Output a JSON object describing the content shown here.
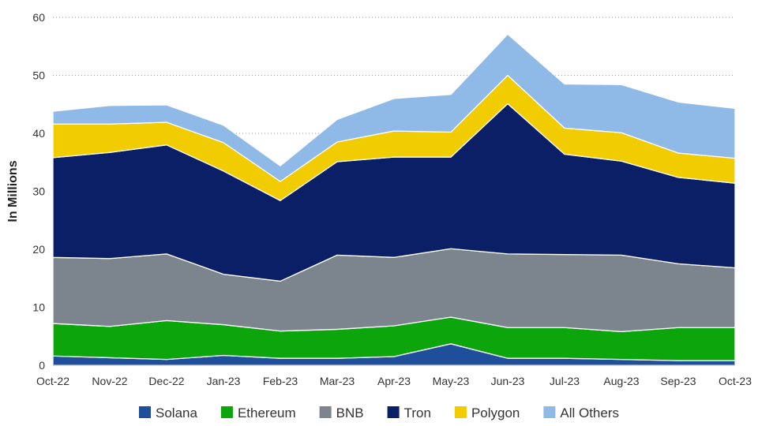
{
  "chart_data": {
    "type": "area",
    "stacked": true,
    "title": "",
    "xlabel": "",
    "ylabel": "In Millions",
    "ylim": [
      0,
      60
    ],
    "yticks": [
      "0",
      "10",
      "20",
      "30",
      "40",
      "50",
      "60"
    ],
    "grid": "horizontal dotted",
    "legend_position": "bottom",
    "categories": [
      "Oct-22",
      "Nov-22",
      "Dec-22",
      "Jan-23",
      "Feb-23",
      "Mar-23",
      "Apr-23",
      "May-23",
      "Jun-23",
      "Jul-23",
      "Aug-23",
      "Sep-23",
      "Oct-23"
    ],
    "series": [
      {
        "name": "Solana",
        "color": "#1f4e9a",
        "values": [
          1.6,
          1.3,
          1.0,
          1.7,
          1.2,
          1.2,
          1.5,
          3.7,
          1.2,
          1.2,
          1.0,
          0.8,
          0.8
        ]
      },
      {
        "name": "Ethereum",
        "color": "#0ca50c",
        "values": [
          5.6,
          5.4,
          6.7,
          5.3,
          4.7,
          5.0,
          5.3,
          4.6,
          5.3,
          5.3,
          4.8,
          5.7,
          5.7
        ]
      },
      {
        "name": "BNB",
        "color": "#7c858e",
        "values": [
          11.4,
          11.7,
          11.5,
          8.7,
          8.6,
          12.8,
          11.8,
          11.8,
          12.7,
          12.6,
          13.2,
          11.0,
          10.3
        ]
      },
      {
        "name": "Tron",
        "color": "#0b1f66",
        "values": [
          17.2,
          18.3,
          18.8,
          17.8,
          13.9,
          16.1,
          17.3,
          15.8,
          25.9,
          17.3,
          16.2,
          14.9,
          14.6
        ]
      },
      {
        "name": "Polygon",
        "color": "#f0cc00",
        "values": [
          5.8,
          4.9,
          3.9,
          4.9,
          3.3,
          3.4,
          4.5,
          4.3,
          4.9,
          4.5,
          4.9,
          4.2,
          4.3
        ]
      },
      {
        "name": "All Others",
        "color": "#8fb9e7",
        "values": [
          2.2,
          3.2,
          3.0,
          3.0,
          2.7,
          3.9,
          5.6,
          6.5,
          7.1,
          7.6,
          8.3,
          8.8,
          8.6
        ]
      }
    ]
  }
}
